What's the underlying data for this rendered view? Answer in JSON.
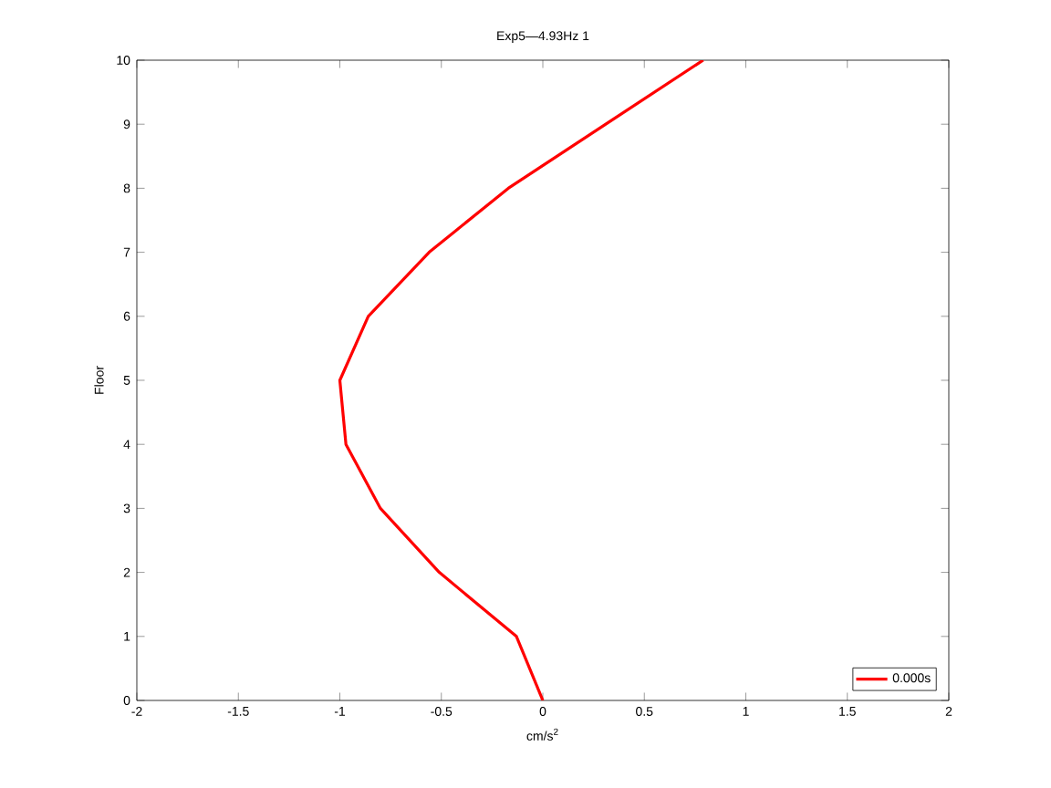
{
  "chart_data": {
    "type": "line",
    "title": "Exp5—4.93Hz 1",
    "xlabel": "cm/s$^{2}$",
    "ylabel": "Floor",
    "xlim": [
      -2,
      2
    ],
    "xticks": [
      -2,
      -1.5,
      -1,
      -0.5,
      0,
      0.5,
      1,
      1.5,
      2
    ],
    "ylim": [
      0,
      10
    ],
    "yticks": [
      0,
      1,
      2,
      3,
      4,
      5,
      6,
      7,
      8,
      9,
      10
    ],
    "legend": "bottom right",
    "grid": false,
    "series": [
      {
        "name": "0.000s",
        "color": "#ff0000",
        "x": [
          0,
          -0.13,
          -0.51,
          -0.8,
          -0.97,
          -1.0,
          -0.86,
          -0.56,
          -0.17,
          0.31,
          0.79
        ],
        "values": [
          0,
          1,
          2,
          3,
          4,
          5,
          6,
          7,
          8,
          9,
          10
        ]
      }
    ]
  }
}
